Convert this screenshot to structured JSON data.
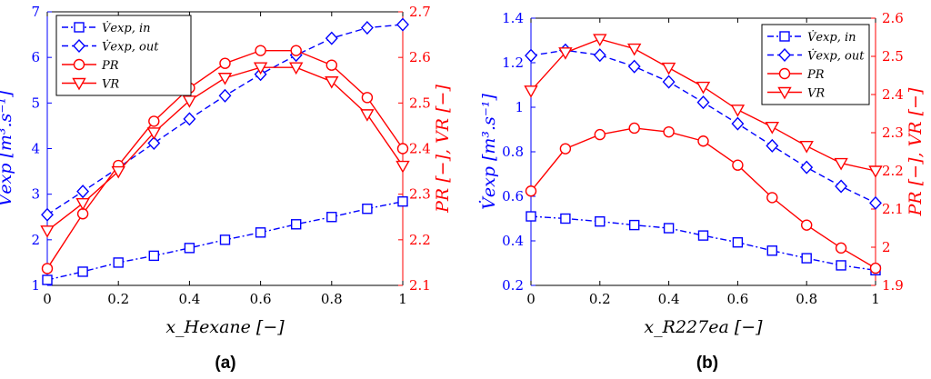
{
  "colors": {
    "left_axis": "#0000ff",
    "right_axis": "#ff0000",
    "box": "#000000"
  },
  "chart_data": [
    {
      "type": "line",
      "caption": "(a)",
      "xlabel": "x_Hexane [−]",
      "ylabel_left": "V̇exp [m³.s⁻¹]",
      "ylabel_right": "PR [−], VR [−]",
      "xlim": [
        0,
        1
      ],
      "ylim_left": [
        1,
        7
      ],
      "ylim_right": [
        2.1,
        2.7
      ],
      "x_ticks": [
        "0",
        "0.2",
        "0.4",
        "0.6",
        "0.8",
        "1"
      ],
      "y_left_ticks": [
        "1",
        "2",
        "3",
        "4",
        "5",
        "6",
        "7"
      ],
      "y_right_ticks": [
        "2.1",
        "2.2",
        "2.3",
        "2.4",
        "2.5",
        "2.6",
        "2.7"
      ],
      "legend_position": "top-left",
      "grid": false,
      "x": [
        0,
        0.1,
        0.2,
        0.3,
        0.4,
        0.5,
        0.6,
        0.7,
        0.8,
        0.9,
        1.0
      ],
      "series": [
        {
          "name": "V̇exp, in",
          "axis": "left",
          "color": "#0000ff",
          "dash": "dashdot",
          "marker": "square",
          "values": [
            1.12,
            1.3,
            1.5,
            1.65,
            1.82,
            2.0,
            2.16,
            2.34,
            2.5,
            2.68,
            2.84
          ]
        },
        {
          "name": "V̇exp, out",
          "axis": "left",
          "color": "#0000ff",
          "dash": "dashed",
          "marker": "diamond",
          "values": [
            2.55,
            3.06,
            3.58,
            4.12,
            4.65,
            5.16,
            5.63,
            6.05,
            6.42,
            6.65,
            6.72
          ]
        },
        {
          "name": "PR",
          "axis": "right",
          "color": "#ff0000",
          "dash": "solid",
          "marker": "circle",
          "values": [
            2.137,
            2.257,
            2.363,
            2.46,
            2.533,
            2.587,
            2.615,
            2.615,
            2.583,
            2.512,
            2.4
          ]
        },
        {
          "name": "VR",
          "axis": "right",
          "color": "#ff0000",
          "dash": "solid",
          "marker": "triangle-down",
          "values": [
            2.22,
            2.28,
            2.35,
            2.435,
            2.505,
            2.555,
            2.578,
            2.578,
            2.547,
            2.475,
            2.362
          ]
        }
      ]
    },
    {
      "type": "line",
      "caption": "(b)",
      "xlabel": "x_R227ea [−]",
      "ylabel_left": "V̇exp [m³.s⁻¹]",
      "ylabel_right": "PR [−], VR [−]",
      "xlim": [
        0,
        1
      ],
      "ylim_left": [
        0.2,
        1.4
      ],
      "ylim_right": [
        1.9,
        2.6
      ],
      "x_ticks": [
        "0",
        "0.2",
        "0.4",
        "0.6",
        "0.8",
        "1"
      ],
      "y_left_ticks": [
        "0.2",
        "0.4",
        "0.6",
        "0.8",
        "1",
        "1.2",
        "1.4"
      ],
      "y_right_ticks": [
        "1.9",
        "2",
        "2.1",
        "2.2",
        "2.3",
        "2.4",
        "2.5",
        "2.6"
      ],
      "legend_position": "top-right",
      "grid": false,
      "x": [
        0,
        0.1,
        0.2,
        0.3,
        0.4,
        0.5,
        0.6,
        0.7,
        0.8,
        0.9,
        1.0
      ],
      "series": [
        {
          "name": "V̇exp, in",
          "axis": "left",
          "color": "#0000ff",
          "dash": "dashdot",
          "marker": "square",
          "values": [
            0.51,
            0.5,
            0.487,
            0.471,
            0.457,
            0.424,
            0.393,
            0.356,
            0.322,
            0.29,
            0.268
          ]
        },
        {
          "name": "V̇exp, out",
          "axis": "left",
          "color": "#0000ff",
          "dash": "dashed",
          "marker": "diamond",
          "values": [
            1.232,
            1.256,
            1.234,
            1.183,
            1.114,
            1.022,
            0.926,
            0.827,
            0.73,
            0.645,
            0.57
          ]
        },
        {
          "name": "PR",
          "axis": "right",
          "color": "#ff0000",
          "dash": "solid",
          "marker": "circle",
          "values": [
            2.147,
            2.258,
            2.295,
            2.312,
            2.302,
            2.278,
            2.215,
            2.13,
            2.058,
            1.998,
            1.945
          ]
        },
        {
          "name": "VR",
          "axis": "right",
          "color": "#ff0000",
          "dash": "solid",
          "marker": "triangle-down",
          "values": [
            2.41,
            2.51,
            2.545,
            2.52,
            2.47,
            2.42,
            2.36,
            2.315,
            2.265,
            2.22,
            2.2
          ]
        }
      ]
    }
  ]
}
